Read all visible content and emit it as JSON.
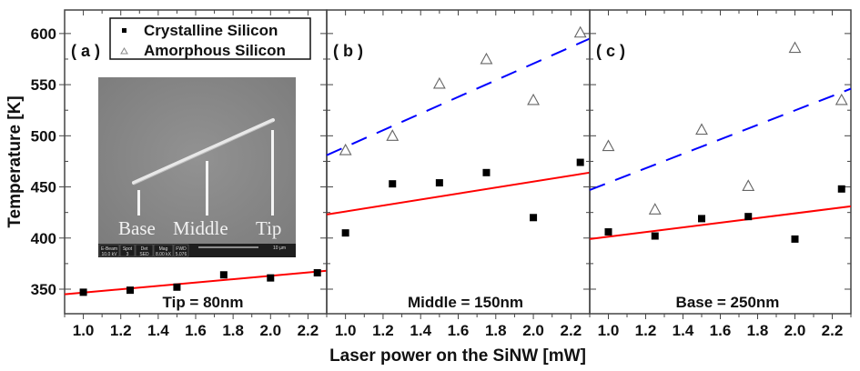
{
  "chart_data": {
    "type": "scatter",
    "ylabel": "Temperature [K]",
    "xlabel": "Laser power on the SiNW [mW]",
    "ylim": [
      326,
      623
    ],
    "xlim": [
      0.9,
      2.3
    ],
    "yticks": [
      350,
      400,
      450,
      500,
      550,
      600
    ],
    "xticks": [
      1.0,
      1.2,
      1.4,
      1.6,
      1.8,
      2.0,
      2.2
    ],
    "xtick_labels": [
      "1.0",
      "1.2",
      "1.4",
      "1.6",
      "1.8",
      "2.0",
      "2.2"
    ],
    "ytick_labels": [
      "350",
      "400",
      "450",
      "500",
      "550",
      "600"
    ],
    "grid": false,
    "legend": {
      "placement": "top-left",
      "entries": [
        {
          "name": "Crystalline Silicon",
          "marker": "filled-square",
          "color": "#000000"
        },
        {
          "name": "Amorphous Silicon",
          "marker": "open-triangle",
          "color": "#777777"
        }
      ]
    },
    "colors": {
      "crystalline_fit": "#ff0000",
      "amorphous_fit": "#0000ff"
    },
    "panels": [
      {
        "tag": "( a )",
        "caption": "Tip = 80nm",
        "series": [
          {
            "name": "Crystalline Silicon",
            "x": [
              1.0,
              1.25,
              1.5,
              1.75,
              2.0,
              2.25
            ],
            "y": [
              347,
              349,
              352,
              364,
              361,
              366
            ]
          }
        ],
        "fits": [
          {
            "name": "Crystalline fit",
            "style": "solid",
            "color": "#ff0000",
            "x": [
              0.9,
              2.3
            ],
            "y": [
              345,
              368
            ]
          }
        ]
      },
      {
        "tag": "( b )",
        "caption": "Middle = 150nm",
        "series": [
          {
            "name": "Crystalline Silicon",
            "x": [
              1.0,
              1.25,
              1.5,
              1.75,
              2.0,
              2.25
            ],
            "y": [
              405,
              453,
              454,
              464,
              420,
              474
            ]
          },
          {
            "name": "Amorphous Silicon",
            "x": [
              1.0,
              1.25,
              1.5,
              1.75,
              2.0,
              2.25
            ],
            "y": [
              486,
              500,
              551,
              575,
              535,
              601
            ]
          }
        ],
        "fits": [
          {
            "name": "Crystalline fit",
            "style": "solid",
            "color": "#ff0000",
            "x": [
              0.9,
              2.3
            ],
            "y": [
              423,
              464
            ]
          },
          {
            "name": "Amorphous fit",
            "style": "dashed",
            "color": "#0000ff",
            "x": [
              0.9,
              2.3
            ],
            "y": [
              481,
              595
            ]
          }
        ]
      },
      {
        "tag": "( c )",
        "caption": "Base = 250nm",
        "series": [
          {
            "name": "Crystalline Silicon",
            "x": [
              1.0,
              1.25,
              1.5,
              1.75,
              2.0,
              2.25
            ],
            "y": [
              406,
              402,
              419,
              421,
              399,
              448
            ]
          },
          {
            "name": "Amorphous Silicon",
            "x": [
              1.0,
              1.25,
              1.5,
              1.75,
              2.0,
              2.25
            ],
            "y": [
              490,
              428,
              506,
              451,
              586,
              535
            ]
          }
        ],
        "fits": [
          {
            "name": "Crystalline fit",
            "style": "solid",
            "color": "#ff0000",
            "x": [
              0.9,
              2.3
            ],
            "y": [
              399,
              431
            ]
          },
          {
            "name": "Amorphous fit",
            "style": "dashed",
            "color": "#0000ff",
            "x": [
              0.9,
              2.3
            ],
            "y": [
              447,
              546
            ]
          }
        ]
      }
    ],
    "inset": {
      "labels": [
        "Base",
        "Middle",
        "Tip"
      ],
      "info_bar": [
        {
          "top": "E-Beam",
          "bottom": "10.0 kV"
        },
        {
          "top": "Spot",
          "bottom": "3"
        },
        {
          "top": "Det",
          "bottom": "SED"
        },
        {
          "top": "Mag",
          "bottom": "8.00 kX"
        },
        {
          "top": "FWD",
          "bottom": "5.076"
        }
      ],
      "scale_label": "10 µm"
    }
  }
}
